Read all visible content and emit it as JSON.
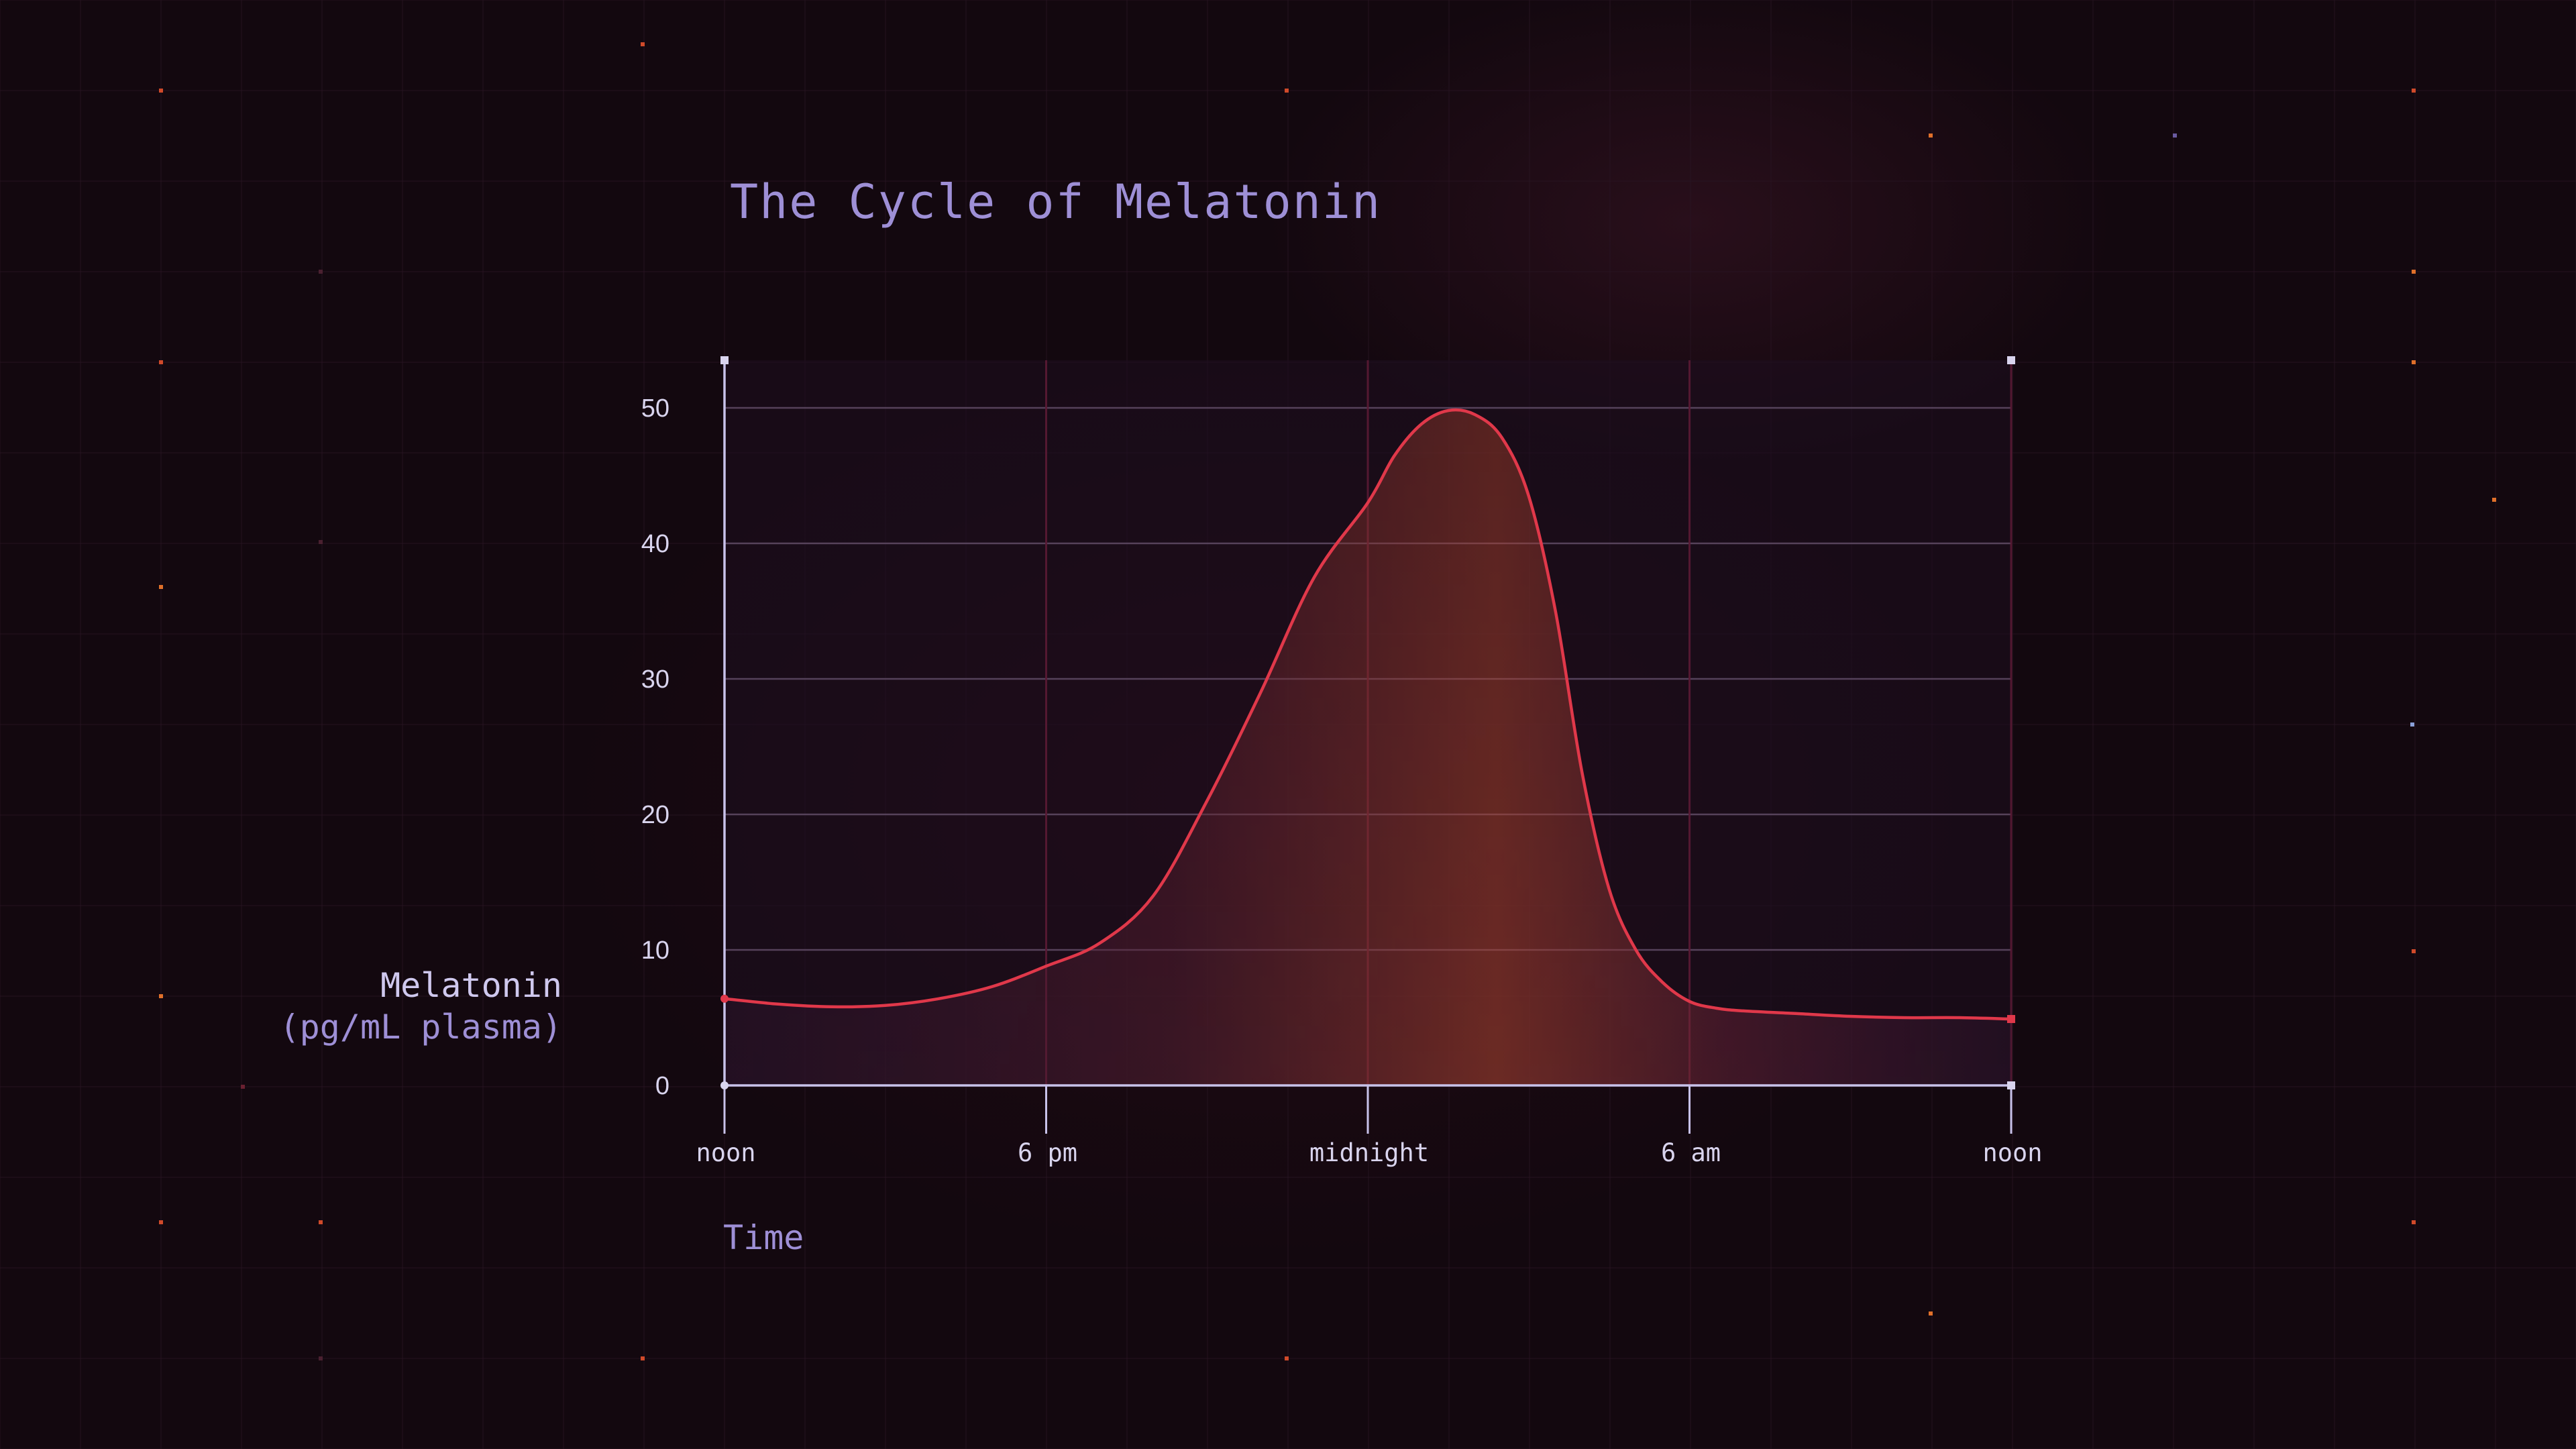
{
  "colors": {
    "background": "#13080f",
    "curve": "#e0384a",
    "axis": "#c8c2ea",
    "title": "#9e8fd6",
    "gridline_h": "#6a5470",
    "gridline_v": "#5a1a34",
    "fill_core": "#b8452f",
    "plot_bg": "#1e0f1f"
  },
  "chart_data": {
    "type": "area",
    "title": "The Cycle of Melatonin",
    "ylabel": "Melatonin",
    "ylabel_unit": "(pg/mL plasma)",
    "xlabel": "Time",
    "xlim": [
      0,
      24
    ],
    "ylim": [
      0,
      50
    ],
    "x_tick_positions": [
      0,
      6,
      12,
      18,
      24
    ],
    "x_tick_labels": [
      "noon",
      "6 pm",
      "midnight",
      "6 am",
      "noon"
    ],
    "y_ticks": [
      0,
      10,
      20,
      30,
      40,
      50
    ],
    "y_tick_labels": [
      "0",
      "10",
      "20",
      "30",
      "40",
      "50"
    ],
    "grid": true,
    "legend": "none",
    "series": [
      {
        "x": [
          0,
          1,
          2,
          3,
          4,
          5,
          6,
          7,
          8,
          9,
          10,
          11,
          12,
          12.5,
          13,
          13.5,
          14,
          14.5,
          15,
          15.5,
          16,
          16.5,
          17,
          17.5,
          18,
          18.5,
          19,
          20,
          21,
          22,
          23,
          24
        ],
        "values": [
          6.4,
          6.0,
          5.8,
          5.9,
          6.4,
          7.3,
          8.8,
          10.5,
          14.0,
          21.0,
          29.0,
          37.5,
          43.0,
          46.5,
          48.8,
          49.8,
          49.5,
          47.8,
          43.5,
          35.0,
          23.0,
          14.5,
          10.0,
          7.6,
          6.2,
          5.7,
          5.5,
          5.3,
          5.1,
          5.0,
          5.0,
          4.9
        ]
      }
    ]
  }
}
